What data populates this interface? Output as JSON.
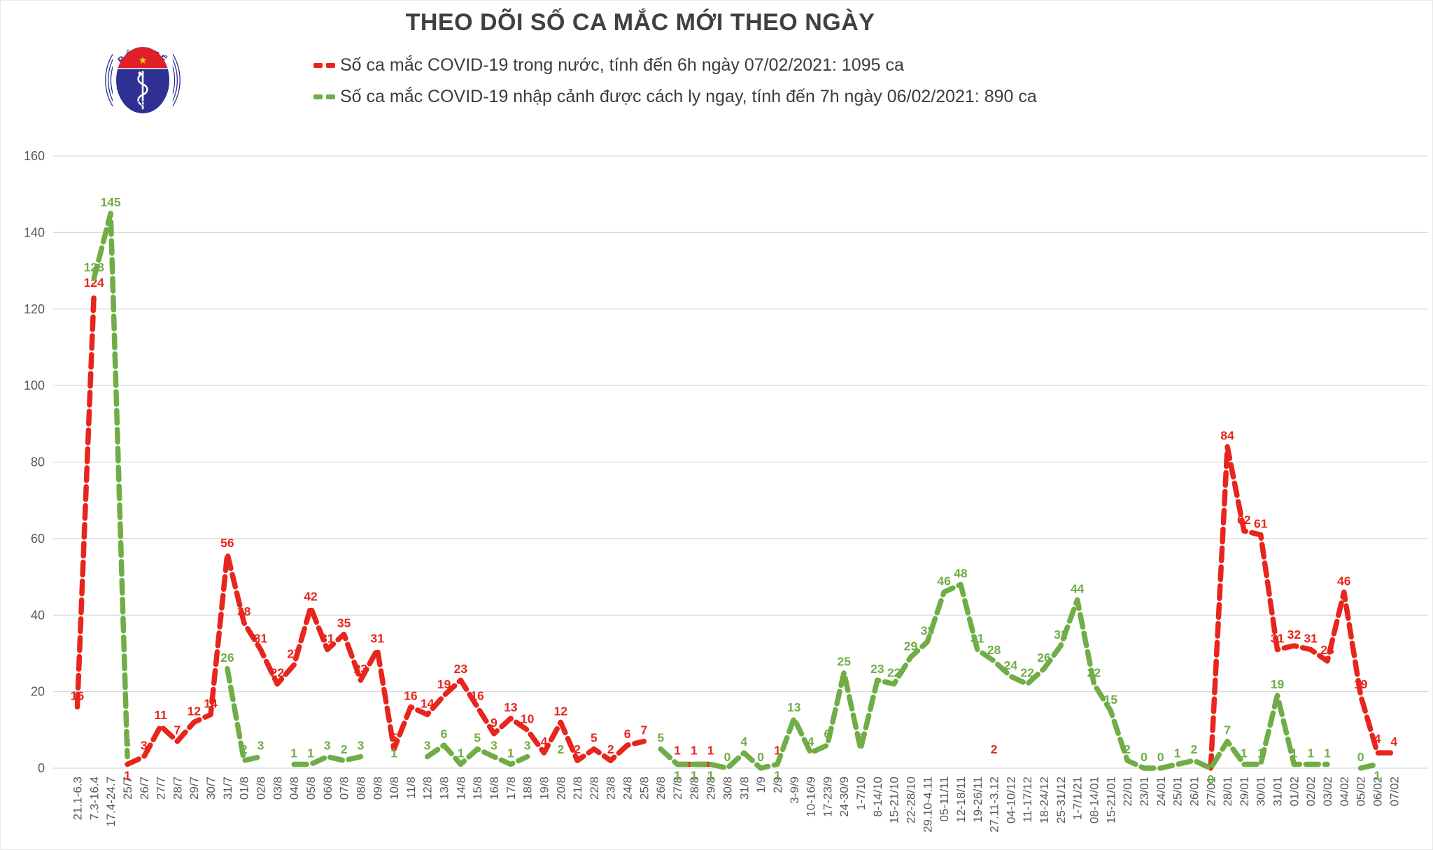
{
  "header": {
    "logo": {
      "top_text": "BỘ Y TẾ",
      "bottom_text": "MINISTRY OF HEALTH"
    }
  },
  "chart_data": {
    "type": "line",
    "title": "THEO DÕI SỐ CA MẮC MỚI THEO NGÀY",
    "xlabel": "",
    "ylabel": "",
    "ylim": [
      0,
      160
    ],
    "yticks": [
      0,
      20,
      40,
      60,
      80,
      100,
      120,
      140,
      160
    ],
    "grid": true,
    "legend_position": "top",
    "x_label_rotation": -90,
    "grid_color": "#d9d9d9",
    "axis_color": "#595959",
    "categories": [
      "21.1-6.3",
      "7.3-16.4",
      "17.4-24.7",
      "25/7",
      "26/7",
      "27/7",
      "28/7",
      "29/7",
      "30/7",
      "31/7",
      "01/8",
      "02/8",
      "03/8",
      "04/8",
      "05/8",
      "06/8",
      "07/8",
      "08/8",
      "09/8",
      "10/8",
      "11/8",
      "12/8",
      "13/8",
      "14/8",
      "15/8",
      "16/8",
      "17/8",
      "18/8",
      "19/8",
      "20/8",
      "21/8",
      "22/8",
      "23/8",
      "24/8",
      "25/8",
      "26/8",
      "27/8",
      "28/8",
      "29/8",
      "30/8",
      "31/8",
      "1/9",
      "2/9",
      "3-9/9",
      "10-16/9",
      "17-23/9",
      "24-30/9",
      "1-7/10",
      "8-14/10",
      "15-21/10",
      "22-28/10",
      "29.10-4.11",
      "05-11/11",
      "12-18/11",
      "19-26/11",
      "27.11-3.12",
      "04-10/12",
      "11-17/12",
      "18-24/12",
      "25-31/12",
      "1-7/1/21",
      "08-14/01",
      "15-21/01",
      "22/01",
      "23/01",
      "24/01",
      "25/01",
      "26/01",
      "27/01",
      "28/01",
      "29/01",
      "30/01",
      "31/01",
      "01/02",
      "02/02",
      "03/02",
      "04/02",
      "05/02",
      "06/02",
      "07/02"
    ],
    "series": [
      {
        "name": "Số ca mắc COVID-19 trong nước, tính đến 6h ngày 07/02/2021: 1095 ca",
        "color": "#e8251d",
        "total_label": "1095 ca",
        "hidden_label_indices": [
          68
        ],
        "values": [
          16,
          124,
          null,
          1,
          3,
          11,
          7,
          12,
          14,
          56,
          38,
          31,
          22,
          27,
          42,
          31,
          35,
          23,
          31,
          5,
          16,
          14,
          19,
          23,
          16,
          9,
          13,
          10,
          4,
          12,
          2,
          5,
          2,
          6,
          7,
          null,
          1,
          1,
          1,
          null,
          null,
          null,
          1,
          null,
          null,
          null,
          null,
          null,
          null,
          null,
          null,
          null,
          null,
          null,
          null,
          2,
          null,
          null,
          null,
          null,
          null,
          null,
          null,
          null,
          null,
          null,
          null,
          null,
          0,
          84,
          62,
          61,
          31,
          32,
          31,
          28,
          46,
          19,
          4,
          4
        ]
      },
      {
        "name": "Số ca mắc COVID-19 nhập cảnh được cách ly ngay, tính đến 7h ngày 06/02/2021: 890 ca",
        "color": "#70ad47",
        "total_label": "890 ca",
        "hidden_label_indices": [],
        "values": [
          null,
          128,
          145,
          3,
          null,
          null,
          null,
          null,
          null,
          26,
          2,
          3,
          null,
          1,
          1,
          3,
          2,
          3,
          null,
          1,
          null,
          3,
          6,
          1,
          5,
          3,
          1,
          3,
          null,
          2,
          null,
          null,
          null,
          null,
          null,
          5,
          1,
          1,
          1,
          0,
          4,
          0,
          1,
          13,
          4,
          6,
          25,
          5,
          23,
          22,
          29,
          33,
          46,
          48,
          31,
          28,
          24,
          22,
          26,
          32,
          44,
          22,
          15,
          2,
          0,
          0,
          1,
          2,
          0,
          7,
          1,
          1,
          19,
          1,
          1,
          1,
          null,
          0,
          1,
          null
        ]
      }
    ]
  }
}
